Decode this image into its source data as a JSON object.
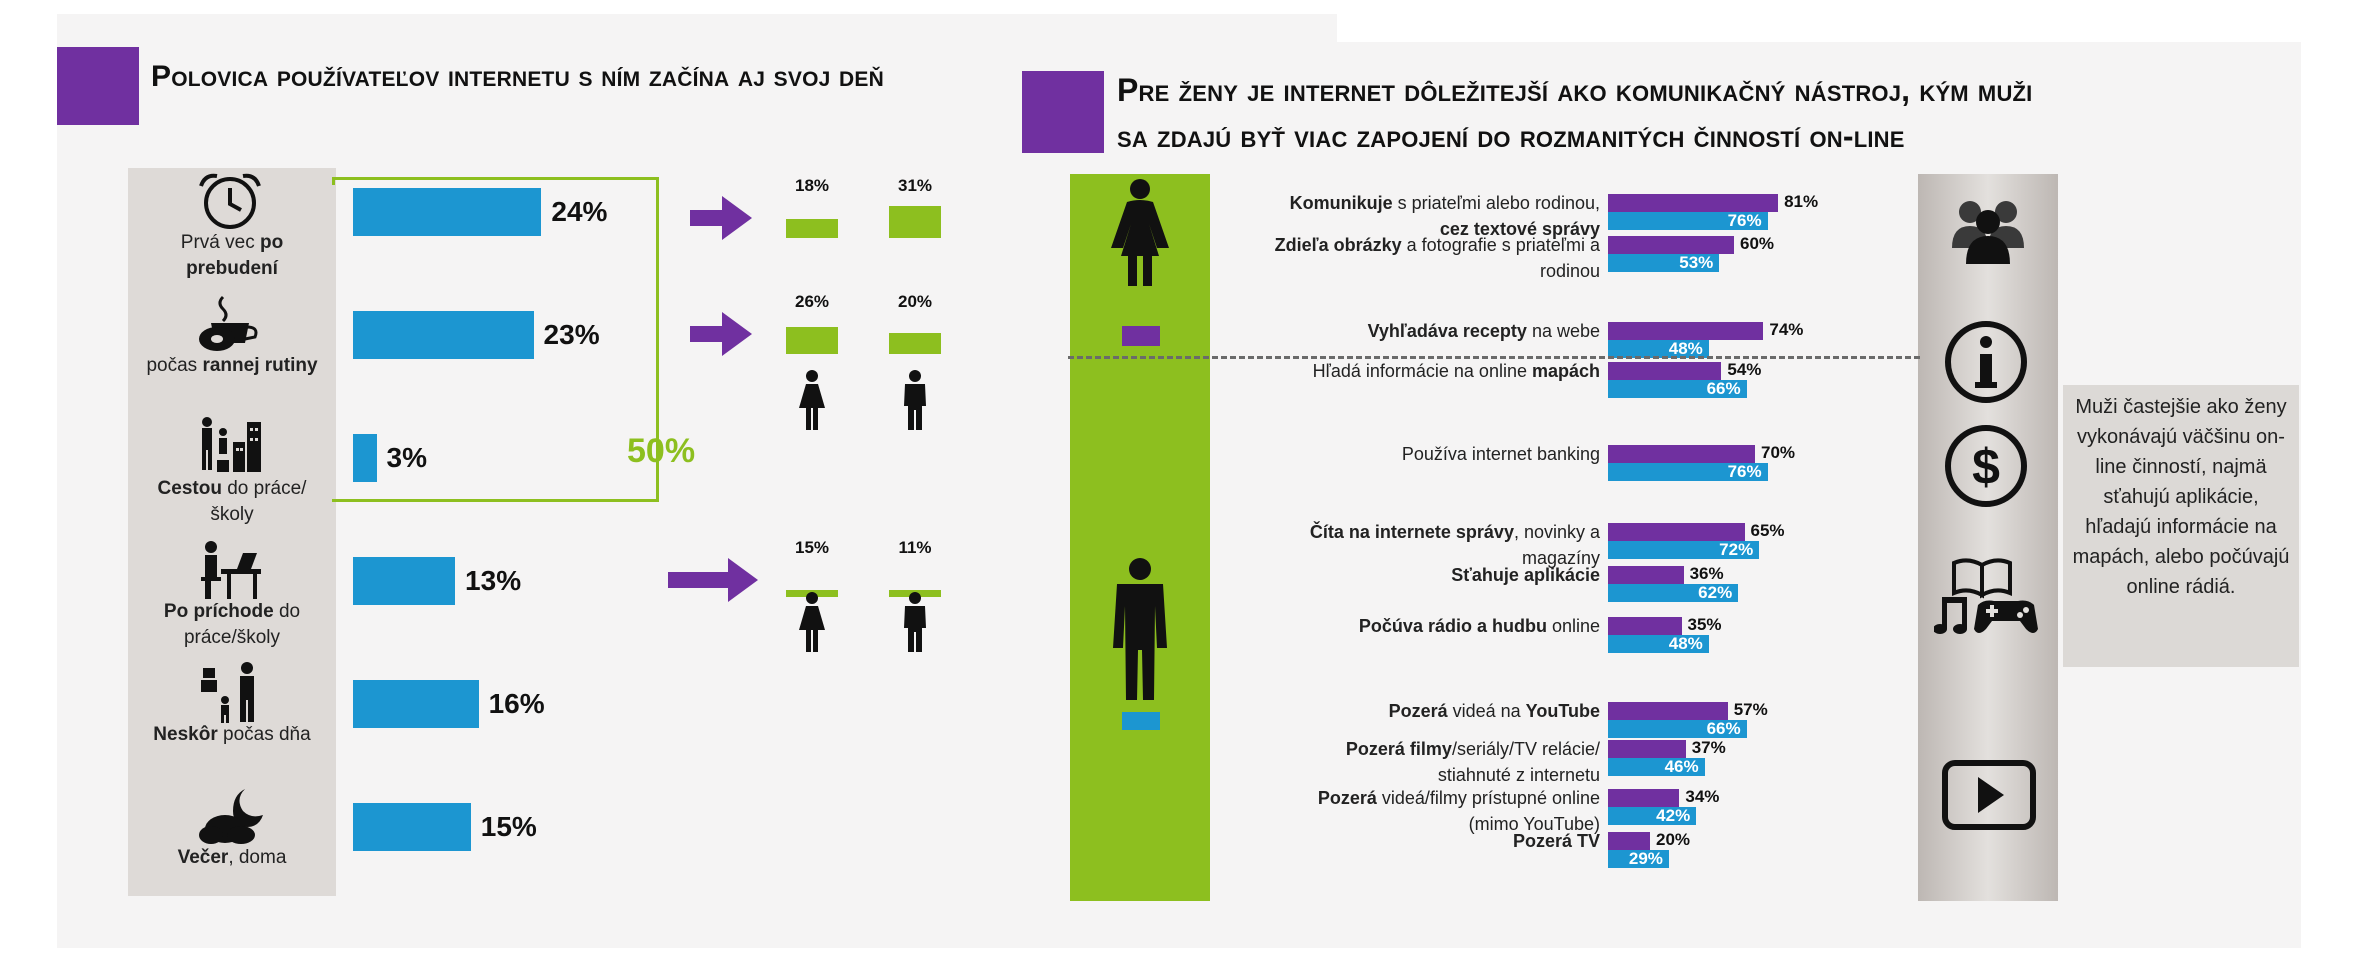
{
  "left": {
    "title": "Polovica používateľov internetu s ním začína aj svoj deň",
    "rows": [
      {
        "label_pre": "Prvá vec ",
        "label_bold": "po prebudení",
        "label_post": "",
        "pct": "24%",
        "icon": "alarm-clock-icon"
      },
      {
        "label_pre": "počas ",
        "label_bold": "rannej rutiny",
        "label_post": "",
        "pct": "23%",
        "icon": "coffee-cup-icon"
      },
      {
        "label_pre": "",
        "label_bold": "Cestou",
        "label_post": " do práce/školy",
        "pct": "3%",
        "icon": "commute-city-icon"
      },
      {
        "label_pre": "",
        "label_bold": "Po príchode",
        "label_post": " do práce/školy",
        "pct": "13%",
        "icon": "desk-worker-icon"
      },
      {
        "label_pre": "",
        "label_bold": "Neskôr",
        "label_post": " počas dňa",
        "pct": "16%",
        "icon": "parent-child-icon"
      },
      {
        "label_pre": "",
        "label_bold": "Večer",
        "label_post": ", doma",
        "pct": "15%",
        "icon": "night-cloud-moon-icon"
      }
    ],
    "bracket_total": "50%",
    "gender_groups": [
      {
        "women": "18%",
        "men": "31%"
      },
      {
        "women": "26%",
        "men": "20%"
      },
      {
        "women": "15%",
        "men": "11%"
      }
    ]
  },
  "right": {
    "title_line1": "Pre ženy je internet dôležitejší ako komunikačný nástroj, kým muži",
    "title_line2": "sa zdajú byť viac zapojení do rozmanitých činností on-line",
    "activities": [
      {
        "l1": [
          [
            "Komunikuje",
            true
          ],
          [
            " s priateľmi alebo rodinou,",
            false
          ]
        ],
        "l2": [
          [
            "cez textové správy",
            true
          ]
        ],
        "women": "81%",
        "men": "76%"
      },
      {
        "l1": [
          [
            "Zdieľa obrázky",
            true
          ],
          [
            " a fotografie s priateľmi a",
            false
          ]
        ],
        "l2": [
          [
            "rodinou",
            false
          ]
        ],
        "women": "60%",
        "men": "53%"
      },
      {
        "l1": [
          [
            "Vyhľadáva recepty",
            true
          ],
          [
            " na webe",
            false
          ]
        ],
        "l2": [],
        "women": "74%",
        "men": "48%"
      },
      {
        "l1": [
          [
            "Hľadá informácie na online ",
            false
          ],
          [
            "mapách",
            true
          ]
        ],
        "l2": [],
        "women": "54%",
        "men": "66%"
      },
      {
        "l1": [
          [
            "Používa internet banking",
            false
          ]
        ],
        "l2": [],
        "women": "70%",
        "men": "76%"
      },
      {
        "l1": [
          [
            "Číta na internete správy",
            true
          ],
          [
            ", novinky a",
            false
          ]
        ],
        "l2": [
          [
            "magazíny",
            false
          ]
        ],
        "women": "65%",
        "men": "72%"
      },
      {
        "l1": [
          [
            "Sťahuje aplikácie",
            true
          ]
        ],
        "l2": [],
        "women": "36%",
        "men": "62%"
      },
      {
        "l1": [
          [
            "Počúva rádio a hudbu",
            true
          ],
          [
            " online",
            false
          ]
        ],
        "l2": [],
        "women": "35%",
        "men": "48%"
      },
      {
        "l1": [
          [
            "Pozerá",
            true
          ],
          [
            " videá na ",
            false
          ],
          [
            "YouTube",
            true
          ]
        ],
        "l2": [],
        "women": "57%",
        "men": "66%"
      },
      {
        "l1": [
          [
            "Pozerá filmy",
            true
          ],
          [
            "/seriály/TV relácie/",
            false
          ]
        ],
        "l2": [
          [
            "stiahnuté z internetu",
            false
          ]
        ],
        "women": "37%",
        "men": "46%"
      },
      {
        "l1": [
          [
            "Pozerá",
            true
          ],
          [
            " videá/filmy prístupné online",
            false
          ]
        ],
        "l2": [
          [
            "(mimo YouTube)",
            false
          ]
        ],
        "women": "34%",
        "men": "42%"
      },
      {
        "l1": [
          [
            "Pozerá TV",
            true
          ]
        ],
        "l2": [],
        "women": "20%",
        "men": "29%"
      }
    ],
    "category_icons": [
      "people-icon",
      "info-icon",
      "dollar-icon",
      "book-music-gamepad-icon",
      "video-play-icon"
    ],
    "note": "Muži častejšie ako ženy vykonávajú väčšinu on-line činností, najmä sťahujú aplikácie, hľadajú informácie na mapách, alebo počúvajú online rádiá."
  },
  "colors": {
    "women": "#7030a0",
    "men": "#1c96d1",
    "accent_green": "#8dbf1f",
    "panel": "#f5f4f4",
    "icon_column": "#dedad7"
  },
  "chart_data": [
    {
      "type": "bar",
      "title": "Polovica používateľov internetu s ním začína aj svoj deň",
      "categories": [
        "Prvá vec po prebudení",
        "počas rannej rutiny",
        "Cestou do práce/školy",
        "Po príchode do práce/školy",
        "Neskôr počas dňa",
        "Večer, doma"
      ],
      "values": [
        24,
        23,
        3,
        13,
        16,
        15
      ],
      "annotation": "50%",
      "gender_breakdown": [
        {
          "category": "Prvá vec po prebudení",
          "women": 18,
          "men": 31
        },
        {
          "category": "počas rannej rutiny",
          "women": 26,
          "men": 20
        },
        {
          "category": "Po príchode do práce/školy",
          "women": 15,
          "men": 11
        }
      ]
    },
    {
      "type": "bar",
      "title": "Pre ženy je internet dôležitejší ako komunikačný nástroj, kým muži sa zdajú byť viac zapojení do rozmanitých činností on-line",
      "categories": [
        "Komunikuje s priateľmi alebo rodinou, cez textové správy",
        "Zdieľa obrázky a fotografie s priateľmi a rodinou",
        "Vyhľadáva recepty na webe",
        "Hľadá informácie na online mapách",
        "Používa internet banking",
        "Číta na internete správy, novinky a magazíny",
        "Sťahuje aplikácie",
        "Počúva rádio a hudbu online",
        "Pozerá videá na YouTube",
        "Pozerá filmy/seriály/TV relácie/ stiahnuté z internetu",
        "Pozerá videá/filmy prístupné online (mimo YouTube)",
        "Pozerá TV"
      ],
      "series": [
        {
          "values": [
            81,
            60,
            74,
            54,
            70,
            65,
            36,
            35,
            57,
            37,
            34,
            20
          ]
        },
        {
          "values": [
            76,
            53,
            48,
            66,
            76,
            72,
            62,
            48,
            66,
            46,
            42,
            29
          ]
        }
      ]
    }
  ]
}
